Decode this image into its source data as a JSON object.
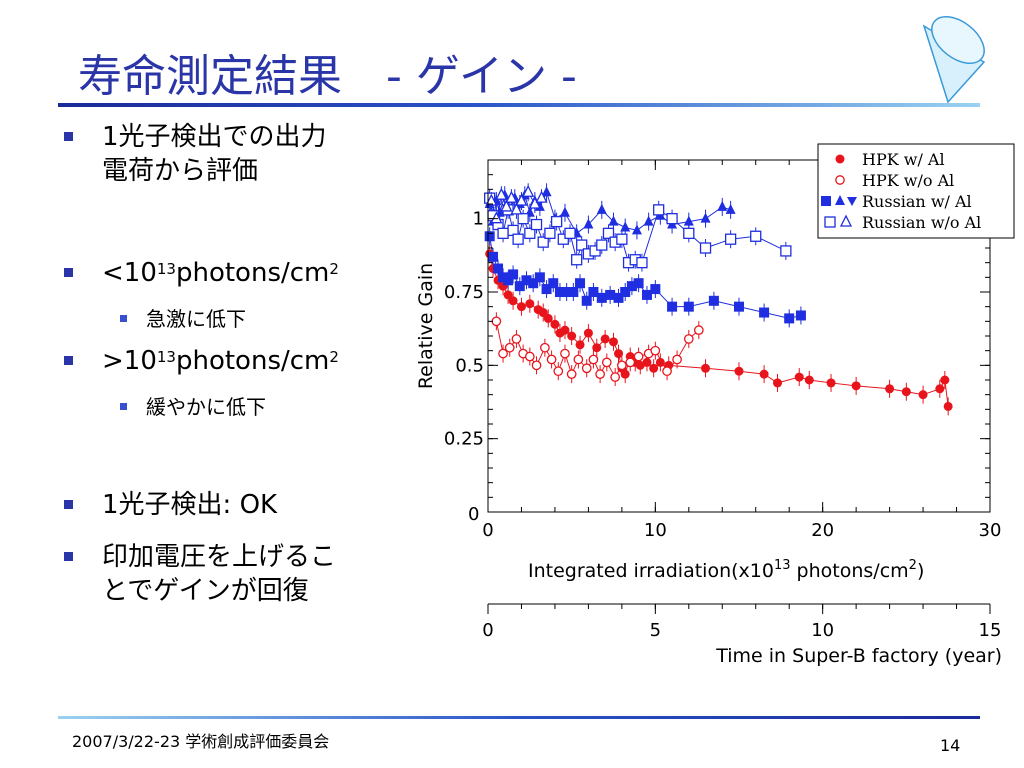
{
  "slide": {
    "title": "寿命測定結果　- ゲイン -",
    "bullets": [
      {
        "line1": "1光子検出での出力",
        "line2": "電荷から評価"
      },
      {
        "prefix": "<10",
        "sup1": "13",
        "mid": "photons/cm",
        "sup2": "2",
        "sub": "急激に低下"
      },
      {
        "prefix": ">10",
        "sup1": "13",
        "mid": "photons/cm",
        "sup2": "2",
        "sub": "緩やかに低下"
      },
      {
        "line1": "1光子検出: OK"
      },
      {
        "line1": "印加電圧を上げるこ",
        "line2": "とでゲインが回復"
      }
    ],
    "footer": "2007/3/22-23 学術創成評価委員会",
    "page_number": "14"
  },
  "chart_data": {
    "type": "scatter",
    "ylabel": "Relative Gain",
    "xlabel_main": "Integrated irradiation(x10",
    "xlabel_sup1": "13",
    "xlabel_mid": " photons/cm",
    "xlabel_sup2": "2",
    "xlabel_end": ")",
    "xlim": [
      0,
      30
    ],
    "ylim": [
      0,
      1.2
    ],
    "xticks": [
      "0",
      "10",
      "20",
      "30"
    ],
    "yticks": [
      {
        "v": 0.25,
        "t": "0.25"
      },
      {
        "v": 0.5,
        "t": "0.5"
      },
      {
        "v": 0.75,
        "t": "0.75"
      },
      {
        "v": 1.0,
        "t": "1"
      }
    ],
    "origin_label": "0",
    "secondary_axis": {
      "label": "Time in Super-B factory (year)",
      "range": [
        0,
        15
      ],
      "ticks": [
        "0",
        "5",
        "10",
        "15"
      ]
    },
    "legend": [
      {
        "label": "HPK w/ Al",
        "marker": "dot",
        "color": "#e8141c"
      },
      {
        "label": "HPK w/o Al",
        "marker": "circle-open",
        "color": "#e8141c"
      },
      {
        "label": "Russian w/ Al",
        "marker": "square-tri-filled",
        "color": "#1e2ee0"
      },
      {
        "label": "Russian w/o Al",
        "marker": "square-tri-open",
        "color": "#1e2ee0"
      }
    ],
    "series": [
      {
        "name": "HPK w/ Al",
        "color": "#e8141c",
        "marker": "dot",
        "line": true,
        "x": [
          0.1,
          0.3,
          0.6,
          0.9,
          1.2,
          1.5,
          2.0,
          2.5,
          3.0,
          3.3,
          3.6,
          4.0,
          4.3,
          4.6,
          5.0,
          5.5,
          6.0,
          6.5,
          7.0,
          7.5,
          7.8,
          8.0,
          8.2,
          8.5,
          8.8,
          9.1,
          9.5,
          9.9,
          10.3,
          10.8,
          13,
          15,
          16.5,
          17.3,
          18.6,
          19.2,
          20.5,
          22,
          24,
          25,
          26,
          27,
          27.3,
          27.5
        ],
        "y": [
          0.88,
          0.83,
          0.79,
          0.77,
          0.74,
          0.72,
          0.7,
          0.71,
          0.69,
          0.68,
          0.66,
          0.64,
          0.61,
          0.62,
          0.6,
          0.57,
          0.61,
          0.56,
          0.59,
          0.58,
          0.54,
          0.49,
          0.47,
          0.53,
          0.51,
          0.5,
          0.51,
          0.49,
          0.51,
          0.5,
          0.49,
          0.48,
          0.47,
          0.44,
          0.46,
          0.45,
          0.44,
          0.43,
          0.42,
          0.41,
          0.4,
          0.42,
          0.45,
          0.36
        ]
      },
      {
        "name": "HPK w/o Al",
        "color": "#e8141c",
        "marker": "circle-open",
        "line": true,
        "x": [
          0.5,
          0.9,
          1.3,
          1.7,
          2.1,
          2.5,
          2.9,
          3.4,
          3.8,
          4.2,
          4.6,
          5.0,
          5.4,
          5.9,
          6.3,
          6.7,
          7.1,
          7.6,
          8.0,
          8.5,
          9.0,
          9.6,
          10.0,
          10.7,
          11.3,
          12.0,
          12.6
        ],
        "y": [
          0.65,
          0.54,
          0.56,
          0.59,
          0.54,
          0.53,
          0.5,
          0.56,
          0.52,
          0.48,
          0.54,
          0.47,
          0.52,
          0.49,
          0.52,
          0.47,
          0.51,
          0.46,
          0.5,
          0.51,
          0.53,
          0.54,
          0.55,
          0.48,
          0.52,
          0.59,
          0.62
        ]
      },
      {
        "name": "Russian w/ Al",
        "color": "#1e2ee0",
        "marker": "square-filled",
        "line": true,
        "x": [
          0.1,
          0.3,
          0.6,
          0.9,
          1.2,
          1.5,
          1.9,
          2.3,
          2.7,
          3.1,
          3.5,
          3.9,
          4.3,
          4.7,
          5.1,
          5.5,
          5.9,
          6.3,
          6.8,
          7.3,
          7.8,
          8.2,
          8.6,
          9.0,
          9.5,
          10.0,
          11,
          12,
          13.5,
          15,
          16.5,
          18,
          18.7
        ],
        "y": [
          0.94,
          0.87,
          0.83,
          0.8,
          0.79,
          0.81,
          0.77,
          0.79,
          0.78,
          0.8,
          0.76,
          0.78,
          0.75,
          0.75,
          0.75,
          0.78,
          0.72,
          0.75,
          0.73,
          0.74,
          0.73,
          0.75,
          0.77,
          0.78,
          0.74,
          0.76,
          0.7,
          0.7,
          0.72,
          0.7,
          0.68,
          0.66,
          0.67
        ]
      },
      {
        "name": "Russian w/ Al (triangles)",
        "color": "#1e2ee0",
        "marker": "triangle-filled",
        "line": true,
        "x": [
          0.1,
          0.3,
          0.5,
          0.7,
          1.0,
          1.3,
          1.6,
          1.9,
          2.2,
          2.5,
          2.8,
          3.1,
          3.5,
          4.0,
          4.6,
          5.3,
          6.0,
          6.8,
          7.5,
          8.2,
          8.9,
          9.6,
          10.3,
          11,
          12,
          13,
          14,
          14.5
        ],
        "y": [
          1.05,
          0.99,
          1.06,
          1.02,
          1.08,
          1.03,
          1.07,
          1.05,
          1.08,
          1.02,
          1.06,
          1.04,
          1.09,
          1.0,
          1.02,
          0.95,
          0.98,
          1.03,
          0.99,
          0.97,
          0.96,
          0.99,
          1.01,
          0.98,
          0.99,
          1.0,
          1.04,
          1.03
        ]
      },
      {
        "name": "Russian w/o Al",
        "color": "#1e2ee0",
        "marker": "square-open",
        "line": true,
        "x": [
          0.1,
          0.3,
          0.6,
          0.9,
          1.2,
          1.5,
          1.8,
          2.1,
          2.5,
          2.9,
          3.3,
          3.7,
          4.1,
          4.5,
          4.9,
          5.3,
          5.6,
          6.0,
          6.4,
          6.8,
          7.2,
          7.6,
          8.0,
          8.4,
          8.8,
          9.2,
          10.2,
          11.0,
          12.0,
          13.0,
          14.5,
          16.0,
          17.8
        ],
        "y": [
          1.07,
          1.01,
          0.98,
          0.95,
          1.03,
          0.96,
          0.93,
          1.0,
          0.95,
          0.98,
          0.92,
          0.95,
          0.99,
          0.93,
          0.95,
          0.86,
          0.91,
          0.88,
          0.89,
          0.91,
          0.95,
          0.92,
          0.93,
          0.85,
          0.86,
          0.85,
          1.03,
          1.0,
          0.95,
          0.9,
          0.93,
          0.94,
          0.89
        ]
      },
      {
        "name": "Russian w/o Al (triangles)",
        "color": "#1e2ee0",
        "marker": "triangle-open",
        "line": true,
        "x": [
          0.2,
          0.5,
          0.8,
          1.1,
          1.4,
          1.7,
          2.0,
          2.4,
          2.8,
          3.2
        ],
        "y": [
          1.06,
          1.0,
          1.08,
          1.04,
          1.07,
          1.03,
          1.06,
          1.09,
          1.05,
          1.07
        ]
      }
    ]
  }
}
